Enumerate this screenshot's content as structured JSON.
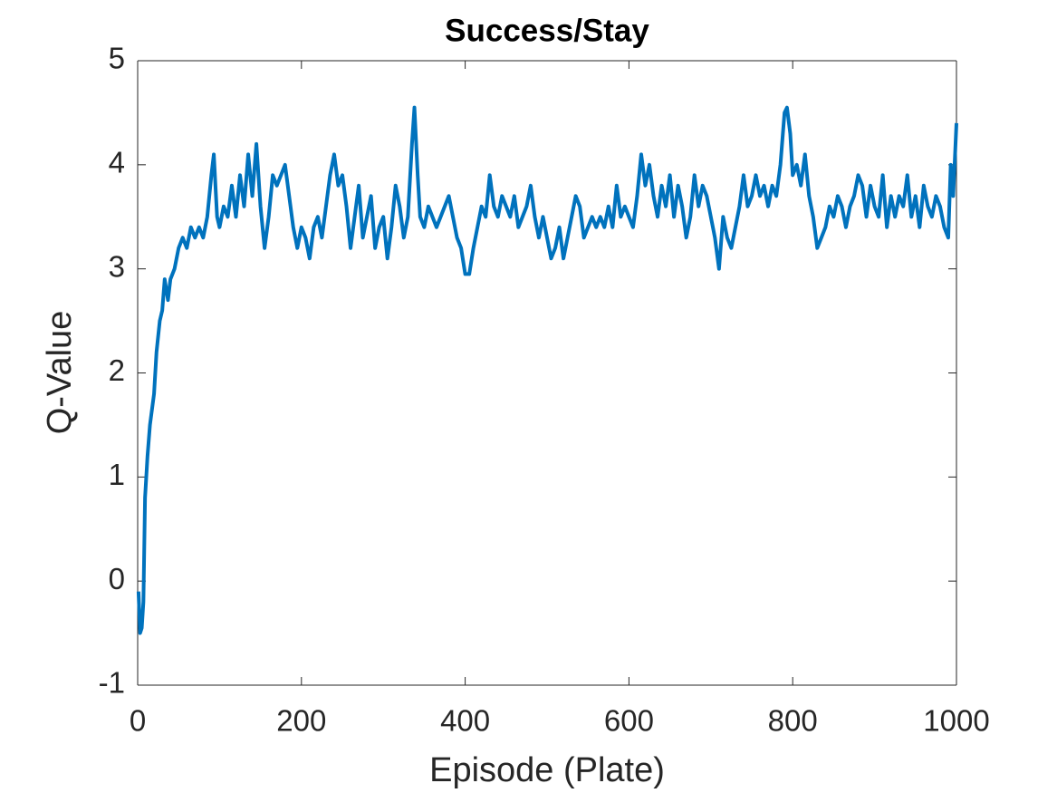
{
  "chart_data": {
    "type": "line",
    "title": "Success/Stay",
    "x_label": "Episode (Plate)",
    "y_label": "Q-Value",
    "x": [
      1,
      3,
      5,
      7,
      9,
      12,
      15,
      20,
      23,
      27,
      30,
      33,
      37,
      40,
      45,
      50,
      55,
      60,
      65,
      70,
      75,
      80,
      85,
      90,
      93,
      97,
      100,
      105,
      110,
      115,
      120,
      125,
      130,
      135,
      140,
      145,
      150,
      155,
      160,
      165,
      170,
      175,
      180,
      185,
      190,
      195,
      200,
      205,
      210,
      215,
      220,
      225,
      230,
      235,
      240,
      245,
      250,
      255,
      260,
      265,
      270,
      275,
      280,
      285,
      290,
      295,
      300,
      305,
      310,
      315,
      320,
      325,
      330,
      335,
      338,
      342,
      345,
      350,
      355,
      360,
      365,
      370,
      375,
      380,
      385,
      390,
      395,
      400,
      405,
      410,
      415,
      420,
      425,
      430,
      435,
      440,
      445,
      450,
      455,
      460,
      465,
      470,
      475,
      480,
      485,
      490,
      495,
      500,
      505,
      510,
      515,
      520,
      525,
      530,
      535,
      540,
      545,
      550,
      555,
      560,
      565,
      570,
      575,
      580,
      585,
      590,
      595,
      600,
      605,
      610,
      615,
      620,
      625,
      630,
      635,
      640,
      645,
      650,
      655,
      660,
      665,
      670,
      675,
      680,
      685,
      690,
      695,
      700,
      705,
      710,
      715,
      720,
      725,
      730,
      735,
      740,
      745,
      750,
      755,
      760,
      765,
      770,
      775,
      780,
      785,
      790,
      793,
      797,
      800,
      805,
      810,
      815,
      820,
      825,
      830,
      835,
      840,
      845,
      850,
      855,
      860,
      865,
      870,
      875,
      880,
      885,
      890,
      895,
      900,
      905,
      910,
      915,
      920,
      925,
      930,
      935,
      940,
      945,
      950,
      955,
      960,
      965,
      970,
      975,
      980,
      985,
      990,
      993,
      996,
      1000
    ],
    "series": [
      {
        "color": "#0072BD",
        "values": [
          -0.1,
          -0.5,
          -0.45,
          -0.2,
          0.8,
          1.2,
          1.5,
          1.8,
          2.2,
          2.5,
          2.6,
          2.9,
          2.7,
          2.9,
          3.0,
          3.2,
          3.3,
          3.2,
          3.4,
          3.3,
          3.4,
          3.3,
          3.5,
          3.9,
          4.1,
          3.5,
          3.4,
          3.6,
          3.5,
          3.8,
          3.5,
          3.9,
          3.6,
          4.1,
          3.7,
          4.2,
          3.6,
          3.2,
          3.5,
          3.9,
          3.8,
          3.9,
          4.0,
          3.7,
          3.4,
          3.2,
          3.4,
          3.3,
          3.1,
          3.4,
          3.5,
          3.3,
          3.6,
          3.9,
          4.1,
          3.8,
          3.9,
          3.6,
          3.2,
          3.5,
          3.8,
          3.3,
          3.5,
          3.7,
          3.2,
          3.4,
          3.5,
          3.1,
          3.4,
          3.8,
          3.6,
          3.3,
          3.5,
          4.2,
          4.55,
          3.9,
          3.5,
          3.4,
          3.6,
          3.5,
          3.4,
          3.5,
          3.6,
          3.7,
          3.5,
          3.3,
          3.2,
          2.95,
          2.95,
          3.2,
          3.4,
          3.6,
          3.5,
          3.9,
          3.6,
          3.5,
          3.7,
          3.6,
          3.5,
          3.7,
          3.4,
          3.5,
          3.6,
          3.8,
          3.5,
          3.3,
          3.5,
          3.3,
          3.1,
          3.2,
          3.4,
          3.1,
          3.3,
          3.5,
          3.7,
          3.6,
          3.3,
          3.4,
          3.5,
          3.4,
          3.5,
          3.4,
          3.6,
          3.4,
          3.8,
          3.5,
          3.6,
          3.5,
          3.4,
          3.7,
          4.1,
          3.8,
          4.0,
          3.7,
          3.5,
          3.8,
          3.6,
          3.9,
          3.5,
          3.8,
          3.6,
          3.3,
          3.5,
          3.9,
          3.6,
          3.8,
          3.7,
          3.5,
          3.3,
          3.0,
          3.5,
          3.3,
          3.2,
          3.4,
          3.6,
          3.9,
          3.6,
          3.7,
          3.9,
          3.7,
          3.8,
          3.6,
          3.8,
          3.7,
          4.0,
          4.5,
          4.55,
          4.3,
          3.9,
          4.0,
          3.8,
          4.1,
          3.7,
          3.5,
          3.2,
          3.3,
          3.4,
          3.6,
          3.5,
          3.7,
          3.6,
          3.4,
          3.6,
          3.7,
          3.9,
          3.8,
          3.5,
          3.8,
          3.6,
          3.5,
          3.9,
          3.4,
          3.7,
          3.5,
          3.7,
          3.6,
          3.9,
          3.5,
          3.7,
          3.4,
          3.8,
          3.6,
          3.5,
          3.7,
          3.6,
          3.4,
          3.3,
          4.0,
          3.7,
          4.4
        ]
      }
    ],
    "xlim": [
      0,
      1000
    ],
    "ylim": [
      -1,
      5
    ],
    "xticks": [
      0,
      200,
      400,
      600,
      800,
      1000
    ],
    "yticks": [
      -1,
      0,
      1,
      2,
      3,
      4,
      5
    ],
    "box": true
  }
}
